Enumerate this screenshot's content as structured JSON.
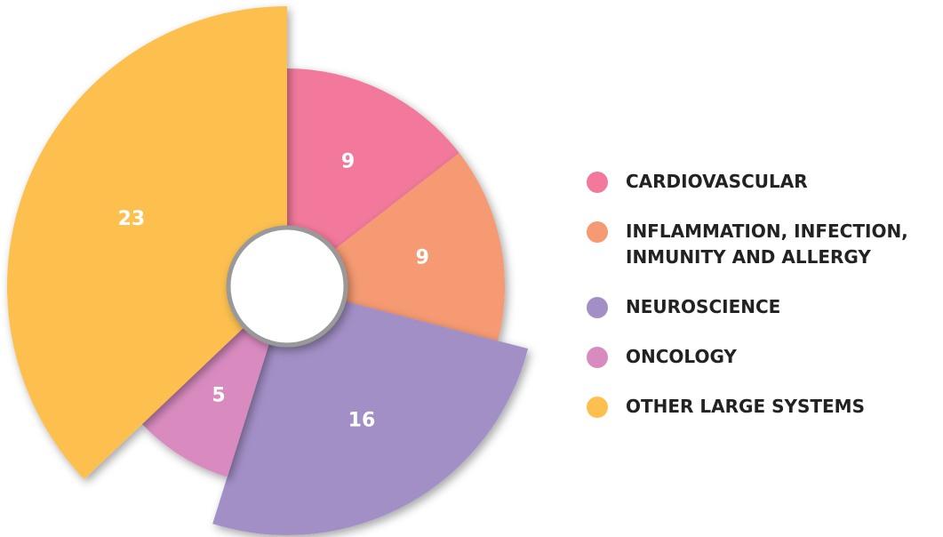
{
  "chart_data": {
    "type": "pie",
    "categories": [
      "CARDIOVASCULAR",
      "INFLAMMATION, INFECTION, INMUNITY AND ALLERGY",
      "NEUROSCIENCE",
      "ONCOLOGY",
      "OTHER LARGE SYSTEMS"
    ],
    "values": [
      9,
      9,
      16,
      5,
      23
    ],
    "colors": [
      "#f2799b",
      "#f59a72",
      "#a28fc6",
      "#d98bc0",
      "#fdc04f"
    ]
  }
}
